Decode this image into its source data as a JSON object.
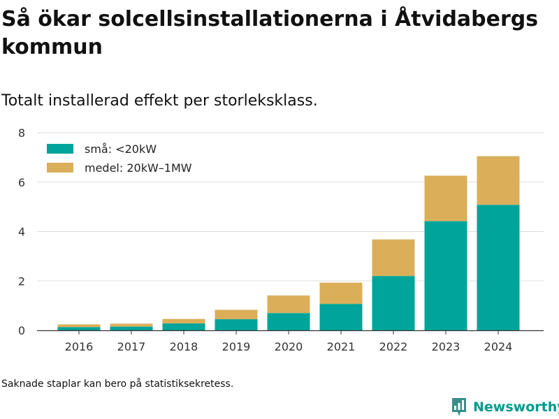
{
  "title": "Så ökar solcellsinstallationerna i Åtvidabergs kommun",
  "subtitle": "Totalt installerad effekt per storleksklass.",
  "footnote": "Saknade staplar kan bero på statistiksekretess.",
  "brand": {
    "name": "Newsworthy",
    "icon": "newsworthy-logo-icon",
    "color": "#009a8e"
  },
  "chart_data": {
    "type": "bar",
    "stacked": true,
    "categories": [
      "2016",
      "2017",
      "2018",
      "2019",
      "2020",
      "2021",
      "2022",
      "2023",
      "2024"
    ],
    "series": [
      {
        "name": "små: <20kW",
        "color": "#00a49a",
        "values": [
          0.13,
          0.15,
          0.28,
          0.45,
          0.7,
          1.07,
          2.2,
          4.42,
          5.08
        ]
      },
      {
        "name": "medel: 20kW–1MW",
        "color": "#dbaf5a",
        "values": [
          0.11,
          0.12,
          0.18,
          0.38,
          0.71,
          0.86,
          1.48,
          1.84,
          1.97
        ]
      }
    ],
    "ylim": [
      0,
      8
    ],
    "yticks": [
      0,
      2,
      4,
      6,
      8
    ],
    "xlabel": "",
    "ylabel": "",
    "grid": true,
    "legend": "top-left"
  }
}
